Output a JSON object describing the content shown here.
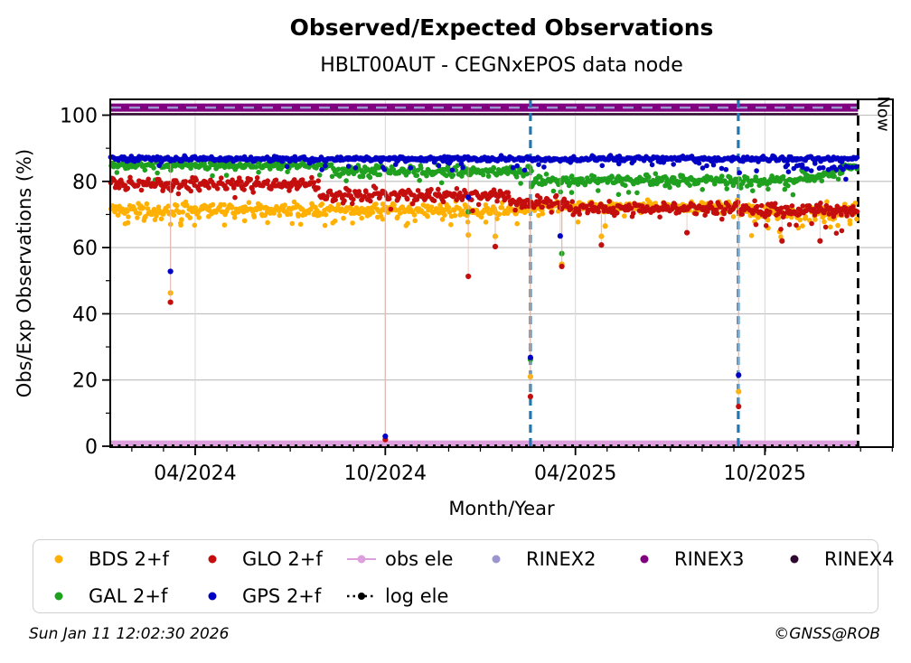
{
  "chart_data": {
    "type": "scatter",
    "title": "Observed/Expected Observations",
    "subtitle": "HBLT00AUT - CEGNxEPOS data node",
    "xlabel": "Month/Year",
    "ylabel": "Obs/Exp Observations (%)",
    "ylim": [
      -0.5,
      104
    ],
    "y_major_ticks": [
      0,
      20,
      40,
      60,
      80,
      100
    ],
    "y_minor_ticks": [
      10,
      30,
      50,
      70,
      90
    ],
    "x_major_ticks": [
      {
        "label": "04/2024",
        "m": 2.68
      },
      {
        "label": "10/2024",
        "m": 8.68
      },
      {
        "label": "04/2025",
        "m": 14.68
      },
      {
        "label": "10/2025",
        "m": 20.66
      }
    ],
    "x_minor_tick_start": 0.68,
    "x_minor_tick_step": 1,
    "x_axis_span_months": 24.7,
    "data_end_month": 23.58,
    "grid_on": true,
    "grid_color": "#bdbdbd",
    "legend_position": "below",
    "series": [
      {
        "name": "BDS 2+f",
        "color": "#FFB000",
        "marker": "dot",
        "typical_percent": "68-74, dips near end",
        "segments": [
          {
            "m0": 0.0,
            "m1": 13.0,
            "base": 71.2,
            "noise": 1.1,
            "sine": 0.7
          },
          {
            "m0": 0.0,
            "m1": 13.0,
            "base": 67.6,
            "noise": 1.0,
            "per_month": 1.5
          },
          {
            "m0": 13.0,
            "m1": 20.0,
            "base": 72.3,
            "noise": 0.9,
            "sine": 0.5
          },
          {
            "m0": 20.0,
            "m1": 23.58,
            "base": 70.6,
            "noise": 1.5,
            "sine": 0.4
          },
          {
            "m0": 20.2,
            "m1": 23.4,
            "base": 64.8,
            "noise": 2.2,
            "per_month": 3
          }
        ],
        "outliers": [
          [
            1.9,
            46.3
          ],
          [
            11.3,
            63.8
          ],
          [
            12.15,
            63.4
          ],
          [
            13.26,
            21.0
          ],
          [
            14.25,
            55.0
          ],
          [
            15.5,
            63.4
          ],
          [
            15.62,
            66.5
          ],
          [
            19.83,
            16.5
          ]
        ]
      },
      {
        "name": "GAL 2+f",
        "color": "#1FA01F",
        "marker": "dot",
        "typical_percent": "85 in early 2024, 83 late 2024, 80-81 in 2025, 84 at end",
        "segments": [
          {
            "m0": 0.0,
            "m1": 7.0,
            "base": 84.8,
            "noise": 0.5,
            "sine": 0.4
          },
          {
            "m0": 7.0,
            "m1": 13.3,
            "base": 83.0,
            "noise": 0.9,
            "sine": 0.5
          },
          {
            "m0": 13.3,
            "m1": 21.8,
            "base": 80.3,
            "noise": 0.8,
            "sine": 0.5
          },
          {
            "m0": 13.0,
            "m1": 21.0,
            "base": 77.4,
            "noise": 1.2,
            "per_month": 1.5
          },
          {
            "m0": 21.8,
            "m1": 23.0,
            "base": 81.8,
            "noise": 0.9,
            "sine": 0.4
          },
          {
            "m0": 23.0,
            "m1": 23.58,
            "base": 84.3,
            "noise": 0.8,
            "sine": 0.3
          }
        ],
        "outliers": [
          [
            11.3,
            70.8
          ],
          [
            13.26,
            26.2
          ],
          [
            14.25,
            58.2
          ]
        ]
      },
      {
        "name": "GLO 2+f",
        "color": "#C40E0E",
        "marker": "dot",
        "typical_percent": "79-80 early 2024, 75-76 late 2024, 71-73 in 2025",
        "segments": [
          {
            "m0": 0.0,
            "m1": 6.6,
            "base": 79.2,
            "noise": 0.8,
            "sine": 1.0
          },
          {
            "m0": 6.6,
            "m1": 12.6,
            "base": 75.8,
            "noise": 0.9,
            "sine": 1.0
          },
          {
            "m0": 12.6,
            "m1": 14.6,
            "base": 73.3,
            "noise": 0.9,
            "sine": 0.8
          },
          {
            "m0": 14.6,
            "m1": 20.5,
            "base": 71.9,
            "noise": 0.9,
            "sine": 0.8
          },
          {
            "m0": 20.5,
            "m1": 23.58,
            "base": 71.2,
            "noise": 1.3,
            "sine": 0.6
          },
          {
            "m0": 20.3,
            "m1": 23.3,
            "base": 65.8,
            "noise": 1.8,
            "per_month": 3
          }
        ],
        "outliers": [
          [
            1.9,
            43.5
          ],
          [
            8.68,
            2.0
          ],
          [
            11.3,
            51.3
          ],
          [
            12.15,
            60.3
          ],
          [
            13.26,
            15.0
          ],
          [
            14.25,
            54.3
          ],
          [
            15.5,
            60.8
          ],
          [
            18.2,
            64.5
          ],
          [
            19.83,
            12.0
          ],
          [
            21.2,
            62.0
          ],
          [
            22.4,
            62.0
          ]
        ]
      },
      {
        "name": "GPS 2+f",
        "color": "#0000C4",
        "marker": "dot",
        "typical_percent": "86-87 throughout",
        "segments": [
          {
            "m0": 0.0,
            "m1": 23.58,
            "base": 86.8,
            "noise": 0.4,
            "sine": 0.25
          },
          {
            "m0": 5.0,
            "m1": 21.0,
            "base": 84.8,
            "noise": 1.2,
            "per_month": 1.5
          },
          {
            "m0": 21.3,
            "m1": 23.58,
            "base": 84.2,
            "noise": 0.6,
            "per_month": 10
          }
        ],
        "outliers": [
          [
            1.9,
            52.8
          ],
          [
            8.68,
            3.0
          ],
          [
            11.3,
            75.2
          ],
          [
            13.26,
            26.8
          ],
          [
            14.2,
            63.5
          ],
          [
            19.83,
            21.5
          ]
        ]
      }
    ],
    "ref_lines": [
      {
        "name": "RINEX3",
        "value": 102.3,
        "color": "#800080",
        "style": "solid",
        "thickness": 9
      },
      {
        "name": "RINEX2",
        "value": 102.3,
        "color": "#9B95CE",
        "style": "dashed",
        "thickness": 2.5
      },
      {
        "name": "RINEX4",
        "value": 100.3,
        "color": "#2E082E",
        "style": "solid",
        "thickness": 2.5
      },
      {
        "name": "obs ele",
        "value": 0.8,
        "color": "#DDA0DD",
        "style": "solid",
        "thickness": 7
      },
      {
        "name": "log ele",
        "value": 0.2,
        "color": "#000000",
        "style": "dotted",
        "thickness": 2.6
      }
    ],
    "vlines": [
      {
        "m": 13.26,
        "color": "#1F77B4",
        "style": "dashed",
        "label": ""
      },
      {
        "m": 19.82,
        "color": "#1F77B4",
        "style": "dashed",
        "label": ""
      },
      {
        "m": 23.6,
        "color": "#000000",
        "style": "dashed",
        "label": "Now"
      }
    ]
  },
  "legend": {
    "columns": [
      [
        {
          "label": "BDS 2+f",
          "marker": "dot",
          "color": "#FFB000"
        },
        {
          "label": "GAL 2+f",
          "marker": "dot",
          "color": "#1FA01F"
        }
      ],
      [
        {
          "label": "GLO 2+f",
          "marker": "dot",
          "color": "#C40E0E"
        },
        {
          "label": "GPS 2+f",
          "marker": "dot",
          "color": "#0000C4"
        }
      ],
      [
        {
          "label": "obs ele",
          "marker": "line-dot",
          "color": "#DDA0DD"
        },
        {
          "label": "log ele",
          "marker": "dash-dot",
          "color": "#000000"
        }
      ],
      [
        {
          "label": "RINEX2",
          "marker": "dot",
          "color": "#9B95CE"
        }
      ],
      [
        {
          "label": "RINEX3",
          "marker": "dot",
          "color": "#800080"
        }
      ],
      [
        {
          "label": "RINEX4",
          "marker": "dot",
          "color": "#2E082E"
        }
      ]
    ]
  },
  "footer": {
    "timestamp": "Sun Jan 11 12:02:30 2026",
    "copyright": "©GNSS@ROB"
  }
}
